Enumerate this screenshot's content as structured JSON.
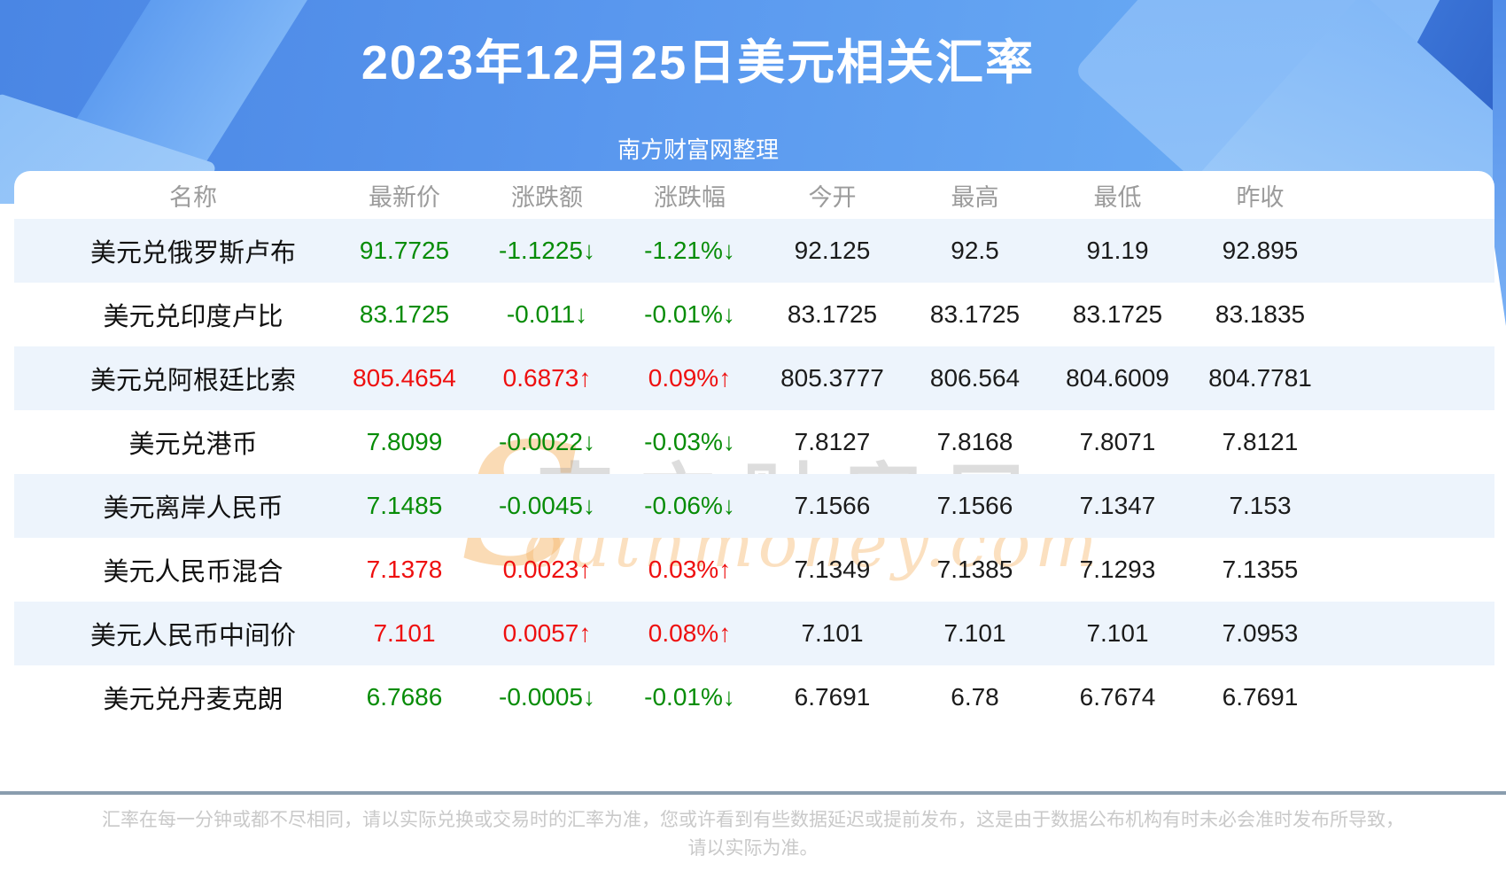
{
  "page": {
    "title": "2023年12月25日美元相关汇率",
    "subtitle": "南方财富网整理",
    "footer_line1": "汇率在每一分钟或都不尽相同，请以实际兑换或交易时的汇率为准，您或许看到有些数据延迟或提前发布，这是由于数据公布机构有时未必会准时发布所导致，",
    "footer_line2": "请以实际为准。"
  },
  "colors": {
    "up_red": "#ee0f0f",
    "down_green": "#078c07",
    "stripe_blue": "#edf4fc",
    "header_gray": "#9b9b9b",
    "hero_blue": "#5997ee",
    "divider_slate": "#8a9dae"
  },
  "watermark": {
    "initial": "S",
    "cn": "南方财富网",
    "en": "outhmoney.com"
  },
  "table": {
    "columns": [
      "名称",
      "最新价",
      "涨跌额",
      "涨跌幅",
      "今开",
      "最高",
      "最低",
      "昨收"
    ],
    "rows": [
      {
        "name": "美元兑俄罗斯卢布",
        "trend": "down",
        "latest": "91.7725",
        "change": "-1.1225↓",
        "pct": "-1.21%↓",
        "open": "92.125",
        "high": "92.5",
        "low": "91.19",
        "prev": "92.895"
      },
      {
        "name": "美元兑印度卢比",
        "trend": "down",
        "latest": "83.1725",
        "change": "-0.011↓",
        "pct": "-0.01%↓",
        "open": "83.1725",
        "high": "83.1725",
        "low": "83.1725",
        "prev": "83.1835"
      },
      {
        "name": "美元兑阿根廷比索",
        "trend": "up",
        "latest": "805.4654",
        "change": "0.6873↑",
        "pct": "0.09%↑",
        "open": "805.3777",
        "high": "806.564",
        "low": "804.6009",
        "prev": "804.7781"
      },
      {
        "name": "美元兑港币",
        "trend": "down",
        "latest": "7.8099",
        "change": "-0.0022↓",
        "pct": "-0.03%↓",
        "open": "7.8127",
        "high": "7.8168",
        "low": "7.8071",
        "prev": "7.8121"
      },
      {
        "name": "美元离岸人民币",
        "trend": "down",
        "latest": "7.1485",
        "change": "-0.0045↓",
        "pct": "-0.06%↓",
        "open": "7.1566",
        "high": "7.1566",
        "low": "7.1347",
        "prev": "7.153"
      },
      {
        "name": "美元人民币混合",
        "trend": "up",
        "latest": "7.1378",
        "change": "0.0023↑",
        "pct": "0.03%↑",
        "open": "7.1349",
        "high": "7.1385",
        "low": "7.1293",
        "prev": "7.1355"
      },
      {
        "name": "美元人民币中间价",
        "trend": "up",
        "latest": "7.101",
        "change": "0.0057↑",
        "pct": "0.08%↑",
        "open": "7.101",
        "high": "7.101",
        "low": "7.101",
        "prev": "7.0953"
      },
      {
        "name": "美元兑丹麦克朗",
        "trend": "down",
        "latest": "6.7686",
        "change": "-0.0005↓",
        "pct": "-0.01%↓",
        "open": "6.7691",
        "high": "6.78",
        "low": "6.7674",
        "prev": "6.7691"
      }
    ]
  }
}
